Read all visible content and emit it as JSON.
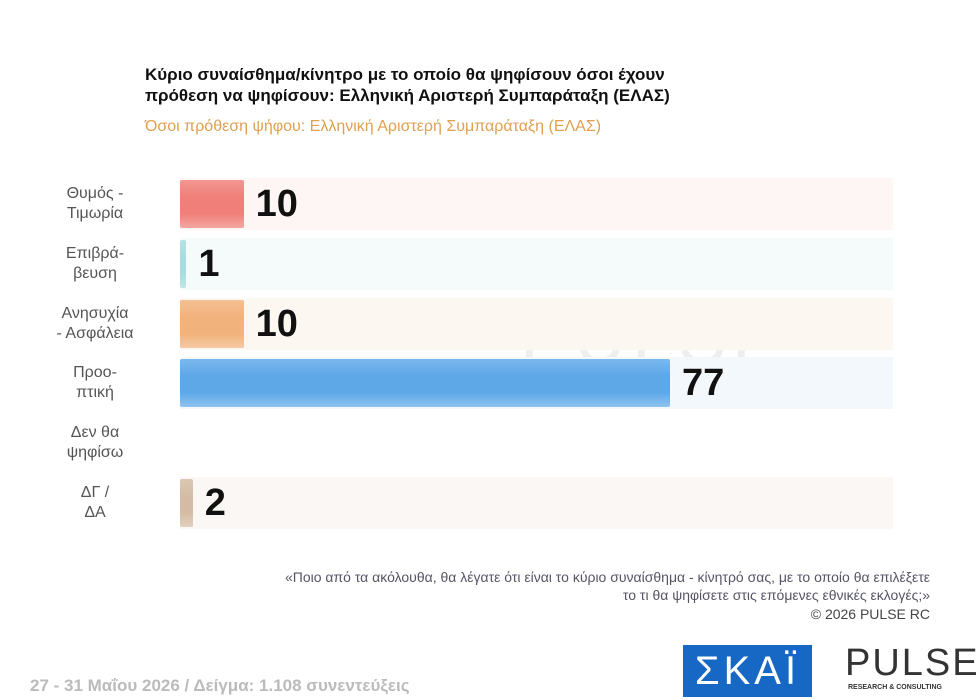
{
  "chart_data": {
    "type": "bar",
    "title": "Κύριο συναίσθημα/κίνητρο με το οποίο θα ψηφίσουν όσοι έχουν\nπρόθεση να ψηφίσουν: Ελληνική Αριστερή Συμπαράταξη (ΕΛΑΣ)",
    "subtitle": "Όσοι πρόθεση ψήφου: Ελληνική Αριστερή Συμπαράταξη (ΕΛΑΣ)",
    "categories": [
      "Θυμός -\nΤιμωρία",
      "Επιβρά-\nβευση",
      "Ανησυχία\n- Ασφάλεια",
      "Προο-\nπτική",
      "Δεν θα\nψηφίσω",
      "ΔΓ /\nΔΑ"
    ],
    "values": [
      10,
      1,
      10,
      77,
      null,
      2
    ],
    "colors": [
      "#f07f7a",
      "#a9dbe0",
      "#f2b27c",
      "#5ea8e8",
      "#cccccc",
      "#d4bca4"
    ],
    "row_tints": [
      "#fdf6f4",
      "#f5fafb",
      "#fdf7f1",
      "#f3f8fd",
      "#ffffff",
      "#faf7f4"
    ],
    "note": "«Ποιο από τα ακόλουθα, θα λέγατε ότι είναι το κύριο συναίσθημα - κίνητρό σας, με το οποίο θα επιλέξετε\nτο τι θα ψηφίσετε στις επόμενες εθνικές εκλογές;»",
    "copyright": "©  2026  PULSE RC",
    "footer": "27 - 31  Μαΐου 2026  /  Δείγμα:  1.108 συνεντεύξεις",
    "logo_skai": "ΣΚΑΪ",
    "logo_pulse": "PULSE",
    "logo_pulse_sub": "RESEARCH & CONSULTING"
  }
}
